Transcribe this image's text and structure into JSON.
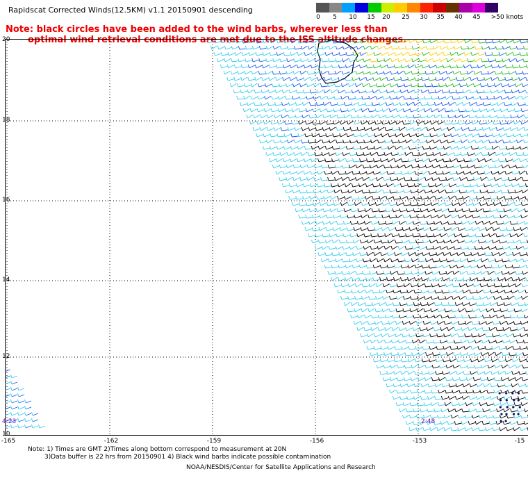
{
  "title": "Rapidscat Corrected Winds(12.5KM) v1.1 20150901 descending",
  "note": {
    "line1": "Note: black circles have been added to the wind barbs, wherever less than",
    "line2": "optimal wind retrieval conditions are met due to the ISS altitude changes."
  },
  "legend": {
    "colors": [
      "#555555",
      "#888888",
      "#00a0ff",
      "#0000dd",
      "#00cc00",
      "#ccee00",
      "#ffcc00",
      "#ff8800",
      "#ff2200",
      "#cc0000",
      "#663300",
      "#aa00aa",
      "#dd00dd",
      "#330066"
    ],
    "labels": [
      "0",
      "5",
      "10",
      "15",
      "20",
      "25",
      "30",
      "35",
      "40",
      "45",
      ">50 knots"
    ]
  },
  "axes": {
    "lat_labels": [
      "20",
      "18",
      "16",
      "14",
      "12",
      "10"
    ],
    "lon_labels": [
      "-165",
      "-162",
      "-159",
      "-156",
      "-153",
      "-15"
    ]
  },
  "times": {
    "left": "4:23",
    "right": "2:48"
  },
  "footer": {
    "note_line1": "Note: 1) Times are GMT 2)Times along bottom correspond to measurement at 20N",
    "note_line2": "3)Data buffer is 22 hrs from 20150901 4) Black wind barbs indicate possible contamination",
    "credit": "NOAA/NESDIS/Center for Satellite Applications and Research"
  },
  "wind_colors": {
    "light": "#33ccee",
    "blue": "#1a55ee",
    "green": "#22bb22",
    "yellow": "#ffcc00",
    "orange": "#ff9900",
    "black": "#000000",
    "land": "#000000"
  }
}
